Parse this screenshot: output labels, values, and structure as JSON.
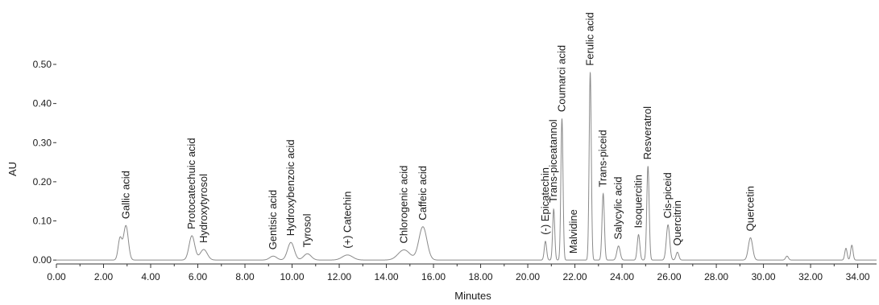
{
  "chart_data": {
    "type": "line",
    "title": "",
    "xlabel": "Minutes",
    "ylabel": "AU",
    "xlim": [
      0,
      34.8
    ],
    "ylim": [
      -0.01,
      0.5
    ],
    "grid": false,
    "line_color": "#8a8a8a",
    "xticks": [
      {
        "value": 0,
        "label": "0.00"
      },
      {
        "value": 2,
        "label": "2.00"
      },
      {
        "value": 4,
        "label": "4.00"
      },
      {
        "value": 6,
        "label": "6.00"
      },
      {
        "value": 8,
        "label": "8.00"
      },
      {
        "value": 10,
        "label": "10.00"
      },
      {
        "value": 12,
        "label": "12.00"
      },
      {
        "value": 14,
        "label": "14.00"
      },
      {
        "value": 16,
        "label": "16.00"
      },
      {
        "value": 18,
        "label": "18.00"
      },
      {
        "value": 20,
        "label": "20.00"
      },
      {
        "value": 22,
        "label": "22.00"
      },
      {
        "value": 24,
        "label": "24.00"
      },
      {
        "value": 26,
        "label": "26.00"
      },
      {
        "value": 28,
        "label": "28.00"
      },
      {
        "value": 30,
        "label": "30.00"
      },
      {
        "value": 32,
        "label": "32.00"
      },
      {
        "value": 34,
        "label": "34.00"
      }
    ],
    "yticks": [
      {
        "value": 0.0,
        "label": "0.00"
      },
      {
        "value": 0.1,
        "label": "0.10"
      },
      {
        "value": 0.2,
        "label": "0.20"
      },
      {
        "value": 0.3,
        "label": "0.30"
      },
      {
        "value": 0.4,
        "label": "0.40"
      },
      {
        "value": 0.5,
        "label": "0.50"
      }
    ],
    "peaks": [
      {
        "x": 2.7,
        "y": 0.055,
        "w": 0.08
      },
      {
        "x": 2.95,
        "y": 0.088,
        "w": 0.1,
        "label": "Gallic acid"
      },
      {
        "x": 5.75,
        "y": 0.062,
        "w": 0.12,
        "label": "Protocatechuic acid"
      },
      {
        "x": 6.25,
        "y": 0.027,
        "w": 0.15,
        "label": "Hydroxytyrosol"
      },
      {
        "x": 9.2,
        "y": 0.01,
        "w": 0.15,
        "label": "Gentisic acid"
      },
      {
        "x": 9.95,
        "y": 0.045,
        "w": 0.14,
        "label": "Hydroxybenzoic acid"
      },
      {
        "x": 10.65,
        "y": 0.016,
        "w": 0.16,
        "label": "Tyrosol"
      },
      {
        "x": 12.35,
        "y": 0.013,
        "w": 0.22,
        "label": "(+) Catechin"
      },
      {
        "x": 14.75,
        "y": 0.026,
        "w": 0.25,
        "label": "Chlorogenic acid"
      },
      {
        "x": 15.55,
        "y": 0.085,
        "w": 0.17,
        "label": "Caffeic acid"
      },
      {
        "x": 20.75,
        "y": 0.048,
        "w": 0.05,
        "label": "(-) Epicatechin"
      },
      {
        "x": 21.1,
        "y": 0.13,
        "w": 0.045,
        "label": "Trans-piceatannol"
      },
      {
        "x": 21.45,
        "y": 0.362,
        "w": 0.045,
        "label": "Coumarci acid"
      },
      {
        "x": 21.95,
        "y": 0.0,
        "w": 0.05,
        "label": "Malvidine"
      },
      {
        "x": 22.65,
        "y": 0.48,
        "w": 0.045,
        "label": "Ferulic acid"
      },
      {
        "x": 23.2,
        "y": 0.17,
        "w": 0.05,
        "label": "Trans-piceid"
      },
      {
        "x": 23.85,
        "y": 0.036,
        "w": 0.07,
        "label": "Salycylic acid"
      },
      {
        "x": 24.7,
        "y": 0.065,
        "w": 0.055,
        "label": "Isoquercitin"
      },
      {
        "x": 25.1,
        "y": 0.24,
        "w": 0.05,
        "label": "Resveratrol"
      },
      {
        "x": 25.95,
        "y": 0.09,
        "w": 0.07,
        "label": "Cis-piceid"
      },
      {
        "x": 26.35,
        "y": 0.02,
        "w": 0.06,
        "label": "Quercitrin"
      },
      {
        "x": 29.45,
        "y": 0.057,
        "w": 0.09,
        "label": "Quercetin"
      },
      {
        "x": 31.0,
        "y": 0.01,
        "w": 0.06
      },
      {
        "x": 33.5,
        "y": 0.03,
        "w": 0.05
      },
      {
        "x": 33.75,
        "y": 0.038,
        "w": 0.05
      }
    ]
  }
}
